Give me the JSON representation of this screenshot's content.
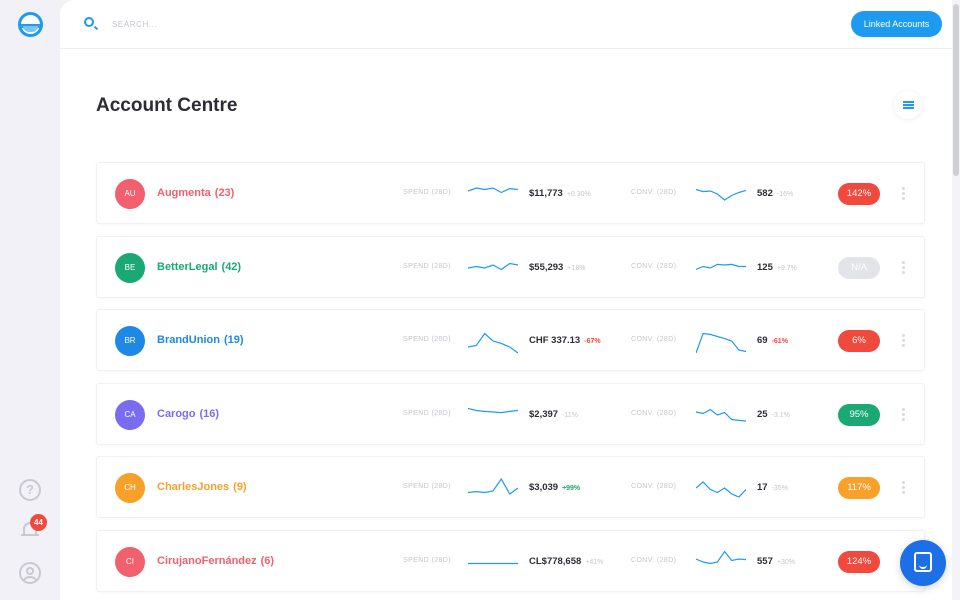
{
  "search": {
    "placeholder": "SEARCH..."
  },
  "header": {
    "linked_accounts_label": "Linked Accounts"
  },
  "page": {
    "title": "Account Centre"
  },
  "notifications": {
    "count": "44"
  },
  "labels": {
    "spend": "SPEND (28D)",
    "conv": "CONV. (28D)"
  },
  "colors": {
    "accent": "#1d9bf0",
    "red": "#f0493e",
    "green": "#21a868",
    "orange": "#f7a12a",
    "purple": "#7a6cf0",
    "grey": "#e3e3ea"
  },
  "accounts": [
    {
      "initials": "AU",
      "name": "Augmenta",
      "count": "(23)",
      "color": "#f25f6e",
      "spend_value": "$11,773",
      "spend_change": "+0.30%",
      "spend_trend": "neutral",
      "spend_spark": [
        0.6,
        0.7,
        0.65,
        0.7,
        0.55,
        0.68,
        0.65
      ],
      "conv_value": "582",
      "conv_change": "-16%",
      "conv_trend": "neutral",
      "conv_spark": [
        0.65,
        0.58,
        0.6,
        0.5,
        0.3,
        0.45,
        0.55,
        0.62
      ],
      "pill": "142%",
      "pill_color": "#f0493e"
    },
    {
      "initials": "BE",
      "name": "BetterLegal",
      "count": "(42)",
      "color": "#1aa874",
      "spend_value": "$55,293",
      "spend_change": "+18%",
      "spend_trend": "neutral",
      "spend_spark": [
        0.5,
        0.55,
        0.5,
        0.6,
        0.45,
        0.65,
        0.6
      ],
      "conv_value": "125",
      "conv_change": "+9.7%",
      "conv_trend": "neutral",
      "conv_spark": [
        0.45,
        0.55,
        0.5,
        0.62,
        0.6,
        0.62,
        0.55,
        0.55
      ],
      "pill": "N/A",
      "pill_color": "#e3e3ea"
    },
    {
      "initials": "BR",
      "name": "BrandUnion",
      "count": "(19)",
      "color": "#1d88e5",
      "spend_value": "CHF 337.13",
      "spend_change": "-67%",
      "spend_trend": "down",
      "spend_spark": [
        0.3,
        0.35,
        0.75,
        0.5,
        0.42,
        0.3,
        0.1
      ],
      "conv_value": "69",
      "conv_change": "-61%",
      "conv_trend": "down",
      "conv_spark": [
        0.1,
        0.75,
        0.72,
        0.65,
        0.58,
        0.5,
        0.2,
        0.15
      ],
      "pill": "6%",
      "pill_color": "#f0493e"
    },
    {
      "initials": "CA",
      "name": "Carogo",
      "count": "(16)",
      "color": "#7a6cf0",
      "spend_value": "$2,397",
      "spend_change": "-11%",
      "spend_trend": "neutral",
      "spend_spark": [
        0.72,
        0.65,
        0.62,
        0.6,
        0.58,
        0.62,
        0.65
      ],
      "conv_value": "25",
      "conv_change": "-3.1%",
      "conv_trend": "neutral",
      "conv_spark": [
        0.6,
        0.55,
        0.68,
        0.5,
        0.58,
        0.35,
        0.32,
        0.3
      ],
      "pill": "95%",
      "pill_color": "#1aa874"
    },
    {
      "initials": "CH",
      "name": "CharlesJones",
      "count": "(9)",
      "color": "#f7a12a",
      "spend_value": "$3,039",
      "spend_change": "+99%",
      "spend_trend": "up",
      "spend_spark": [
        0.35,
        0.38,
        0.35,
        0.4,
        0.8,
        0.3,
        0.5
      ],
      "conv_value": "17",
      "conv_change": "-35%",
      "conv_trend": "neutral",
      "conv_spark": [
        0.5,
        0.7,
        0.45,
        0.35,
        0.5,
        0.3,
        0.2,
        0.45
      ],
      "pill": "117%",
      "pill_color": "#f7a12a"
    },
    {
      "initials": "CI",
      "name": "CirujanoFernández",
      "count": "(6)",
      "color": "#f25f6e",
      "spend_value": "CL$778,658",
      "spend_change": "+41%",
      "spend_trend": "neutral",
      "spend_spark": [
        0.45,
        0.45,
        0.45,
        0.45,
        0.45,
        0.45,
        0.45
      ],
      "conv_value": "557",
      "conv_change": "+30%",
      "conv_trend": "neutral",
      "conv_spark": [
        0.6,
        0.5,
        0.45,
        0.5,
        0.85,
        0.55,
        0.6,
        0.58
      ],
      "pill": "124%",
      "pill_color": "#f0493e"
    }
  ]
}
